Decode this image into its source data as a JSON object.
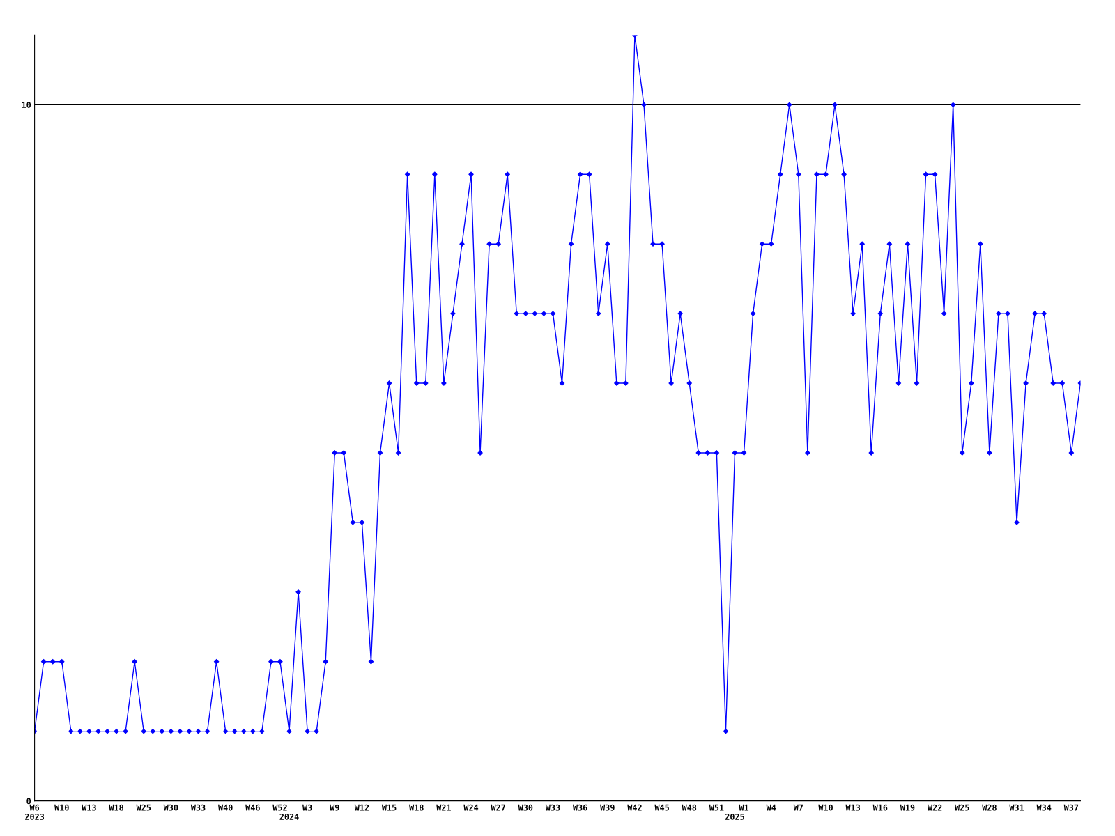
{
  "chart_data": {
    "type": "line",
    "categories": [
      "W6\n2023",
      null,
      null,
      "W10",
      null,
      null,
      "W13",
      null,
      null,
      "W18",
      null,
      null,
      "W25",
      null,
      null,
      "W30",
      null,
      null,
      "W33",
      null,
      null,
      "W40",
      null,
      null,
      "W46",
      null,
      null,
      "W52",
      "\n2024",
      null,
      "W3",
      null,
      null,
      "W9",
      null,
      null,
      "W12",
      null,
      null,
      "W15",
      null,
      null,
      "W18",
      null,
      null,
      "W21",
      null,
      null,
      "W24",
      null,
      null,
      "W27",
      null,
      null,
      "W30",
      null,
      null,
      "W33",
      null,
      null,
      "W36",
      null,
      null,
      "W39",
      null,
      null,
      "W42",
      null,
      null,
      "W45",
      null,
      null,
      "W48",
      null,
      null,
      "W51",
      null,
      "\n2025",
      "W1",
      null,
      null,
      "W4",
      null,
      null,
      "W7",
      null,
      null,
      "W10",
      null,
      null,
      "W13",
      null,
      null,
      "W16",
      null,
      null,
      "W19",
      null,
      null,
      "W22",
      null,
      null,
      "W25",
      null,
      null,
      "W28",
      null,
      null,
      "W31",
      null,
      null,
      "W34",
      null,
      null,
      "W37",
      null
    ],
    "series": [
      {
        "color": "#0000ff",
        "values": [
          1,
          2,
          2,
          2,
          1,
          1,
          1,
          1,
          1,
          1,
          1,
          2,
          1,
          1,
          1,
          1,
          1,
          1,
          1,
          1,
          2,
          1,
          1,
          1,
          1,
          1,
          2,
          2,
          1,
          3,
          1,
          1,
          2,
          5,
          5,
          4,
          4,
          2,
          5,
          6,
          5,
          9,
          6,
          6,
          9,
          6,
          7,
          8,
          9,
          5,
          8,
          8,
          9,
          7,
          7,
          7,
          7,
          7,
          6,
          8,
          9,
          9,
          7,
          8,
          6,
          6,
          11,
          10,
          8,
          8,
          6,
          7,
          6,
          5,
          5,
          5,
          1,
          5,
          5,
          7,
          8,
          8,
          9,
          10,
          9,
          5,
          9,
          9,
          10,
          9,
          7,
          8,
          5,
          7,
          8,
          6,
          8,
          6,
          9,
          9,
          7,
          10,
          5,
          6,
          8,
          5,
          7,
          7,
          4,
          6,
          7,
          7,
          6,
          6,
          5,
          6
        ]
      }
    ],
    "ylim": [
      0,
      11
    ],
    "yticks": [
      0,
      10
    ],
    "grid": "y",
    "marker": "diamond",
    "line_style": "solid"
  }
}
